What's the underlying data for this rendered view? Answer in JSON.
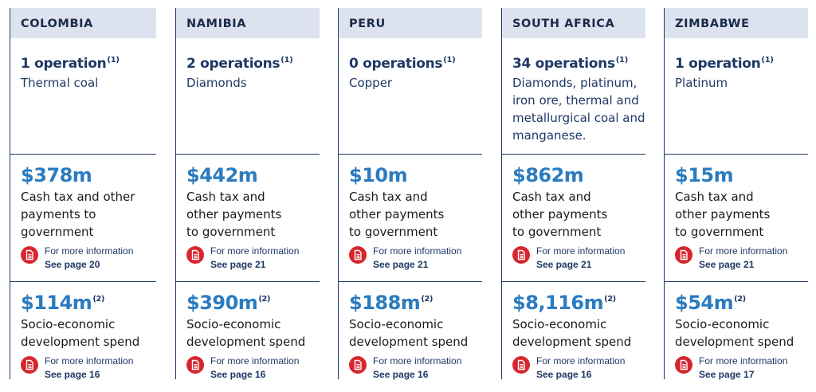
{
  "colors": {
    "rule": "#1f3866",
    "header_bg": "#dde3ee",
    "accent_blue": "#2b7bbf",
    "icon_red": "#d7262e"
  },
  "countries": [
    {
      "name": "COLOMBIA",
      "operations": "1 operation",
      "ops_note": "(1)",
      "commodities": "Thermal coal",
      "cash_value": "$378m",
      "cash_label": "Cash tax and other payments to government",
      "cash_more": "For more information",
      "cash_page": "See page 20",
      "socio_value": "$114m",
      "socio_note": "(2)",
      "socio_label": "Socio-economic development spend",
      "socio_more": "For more information",
      "socio_page": "See page 16"
    },
    {
      "name": "NAMIBIA",
      "operations": "2 operations",
      "ops_note": "(1)",
      "commodities": "Diamonds",
      "cash_value": "$442m",
      "cash_label": "Cash tax and other payments to government",
      "cash_more": "For more information",
      "cash_page": "See page 21",
      "socio_value": "$390m",
      "socio_note": "(2)",
      "socio_label": "Socio-economic development spend",
      "socio_more": "For more information",
      "socio_page": "See page 16"
    },
    {
      "name": "PERU",
      "operations": "0 operations",
      "ops_note": "(1)",
      "commodities": "Copper",
      "cash_value": "$10m",
      "cash_label": "Cash tax and other payments to government",
      "cash_more": "For more information",
      "cash_page": "See page 21",
      "socio_value": "$188m",
      "socio_note": "(2)",
      "socio_label": "Socio-economic development spend",
      "socio_more": "For more information",
      "socio_page": "See page 16"
    },
    {
      "name": "SOUTH AFRICA",
      "operations": "34 operations",
      "ops_note": "(1)",
      "commodities": "Diamonds, platinum, iron ore, thermal and metallurgical coal and manganese.",
      "cash_value": "$862m",
      "cash_label": "Cash tax and other payments to government",
      "cash_more": "For more information",
      "cash_page": "See page 21",
      "socio_value": "$8,116m",
      "socio_note": "(2)",
      "socio_label": "Socio-economic development spend",
      "socio_more": "For more information",
      "socio_page": "See page 16"
    },
    {
      "name": "ZIMBABWE",
      "operations": "1 operation",
      "ops_note": "(1)",
      "commodities": "Platinum",
      "cash_value": "$15m",
      "cash_label": "Cash tax and other payments to government",
      "cash_more": "For more information",
      "cash_page": "See page 21",
      "socio_value": "$54m",
      "socio_note": "(2)",
      "socio_label": "Socio-economic development spend",
      "socio_more": "For more information",
      "socio_page": "See page 17"
    }
  ]
}
